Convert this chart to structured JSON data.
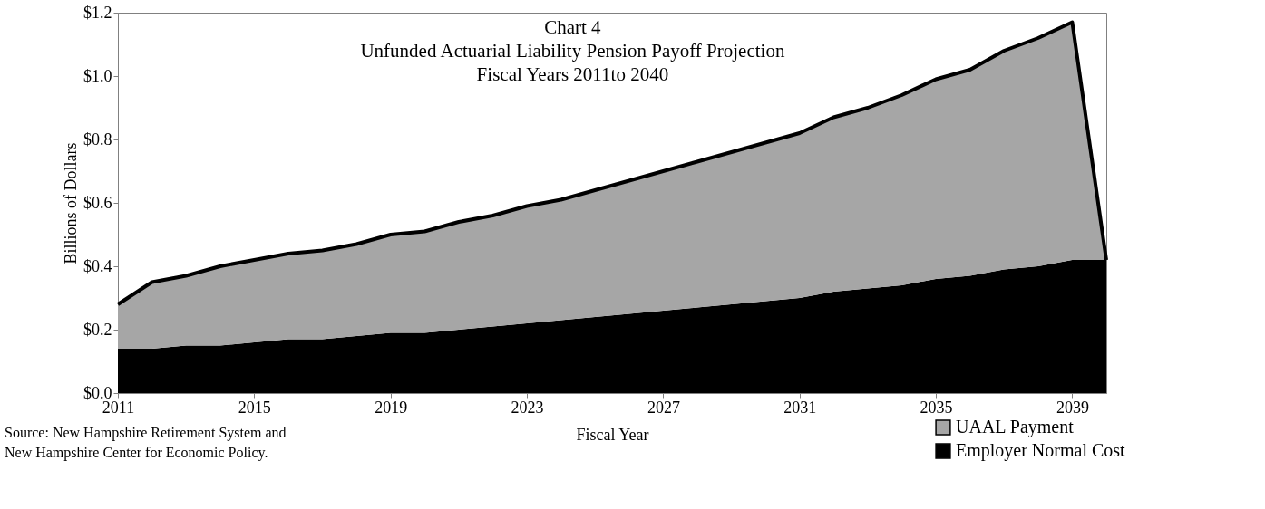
{
  "chart_data": {
    "type": "area",
    "stacked": true,
    "title": "Chart 4",
    "subtitle": "Unfunded Actuarial Liability Pension Payoff Projection\nFiscal Years 2011to 2040",
    "xlabel": "Fiscal Year",
    "ylabel": "Billions of Dollars",
    "annotations": [
      "Source: New Hampshire Retirement System and\nNew Hampshire Center for Economic Policy."
    ],
    "x": [
      2011,
      2012,
      2013,
      2014,
      2015,
      2016,
      2017,
      2018,
      2019,
      2020,
      2021,
      2022,
      2023,
      2024,
      2025,
      2026,
      2027,
      2028,
      2029,
      2030,
      2031,
      2032,
      2033,
      2034,
      2035,
      2036,
      2037,
      2038,
      2039,
      2040
    ],
    "series": [
      {
        "name": "Employer Normal Cost",
        "color": "#000000",
        "values": [
          0.14,
          0.14,
          0.15,
          0.15,
          0.16,
          0.17,
          0.17,
          0.18,
          0.19,
          0.19,
          0.2,
          0.21,
          0.22,
          0.23,
          0.24,
          0.25,
          0.26,
          0.27,
          0.28,
          0.29,
          0.3,
          0.32,
          0.33,
          0.34,
          0.36,
          0.37,
          0.39,
          0.4,
          0.42,
          0.42
        ]
      },
      {
        "name": "UAAL Payment",
        "color": "#a6a6a6",
        "values": [
          0.14,
          0.21,
          0.22,
          0.25,
          0.26,
          0.27,
          0.28,
          0.29,
          0.31,
          0.32,
          0.34,
          0.35,
          0.37,
          0.38,
          0.4,
          0.42,
          0.44,
          0.46,
          0.48,
          0.5,
          0.52,
          0.55,
          0.57,
          0.6,
          0.63,
          0.65,
          0.69,
          0.72,
          0.75,
          0
        ]
      }
    ],
    "xlim": [
      2011,
      2040
    ],
    "xticks": [
      2011,
      2015,
      2019,
      2023,
      2027,
      2031,
      2035,
      2039
    ],
    "ylim": [
      0,
      1.2
    ],
    "yticks": [
      {
        "value": 0,
        "label": "$0.0"
      },
      {
        "value": 0.2,
        "label": "$0.2"
      },
      {
        "value": 0.4,
        "label": "$0.4"
      },
      {
        "value": 0.6,
        "label": "$0.6"
      },
      {
        "value": 0.8,
        "label": "$0.8"
      },
      {
        "value": 1.0,
        "label": "$1.0"
      },
      {
        "value": 1.2,
        "label": "$1.2"
      }
    ],
    "grid": false,
    "legend": "bottom right"
  }
}
